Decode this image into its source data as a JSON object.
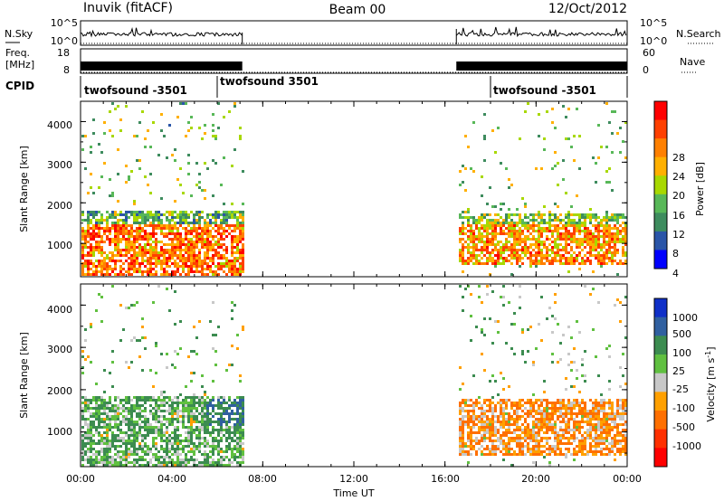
{
  "header": {
    "station": "Inuvik (fitACF)",
    "beam": "Beam 00",
    "date": "12/Oct/2012"
  },
  "panels": {
    "nsky": {
      "left_label": "N.Sky",
      "right_label": "N.Search",
      "left_ticks": [
        "10^5",
        "10^0"
      ],
      "right_ticks": [
        "10^5",
        "10^0"
      ]
    },
    "freq": {
      "left_label_1": "Freq.",
      "left_label_2": "[MHz]",
      "left_ticks": [
        "18",
        "8"
      ],
      "right_label": "Nave",
      "right_ticks": [
        "60",
        "0"
      ]
    },
    "cpid": {
      "label": "CPID",
      "segments": [
        "twofsound -3501",
        "twofsound 3501",
        "twofsound -3501"
      ]
    }
  },
  "power": {
    "ylabel": "Slant Range [km]",
    "yticks": [
      "4000",
      "3000",
      "2000",
      "1000"
    ],
    "cbar_label": "Power [dB]",
    "cbar_ticks": [
      "28",
      "24",
      "20",
      "16",
      "12",
      "8",
      "4"
    ],
    "cbar_colors": [
      "#ff0000",
      "#ff4000",
      "#ff8000",
      "#ffb000",
      "#a8d800",
      "#58b858",
      "#3e8c5e",
      "#2a55a8",
      "#0000ff"
    ]
  },
  "velocity": {
    "ylabel": "Slant Range [km]",
    "yticks": [
      "4000",
      "3000",
      "2000",
      "1000"
    ],
    "cbar_label": "Velocity [m s",
    "cbar_label_sup": "-1",
    "cbar_label_close": "]",
    "cbar_ticks": [
      "1000",
      "500",
      "100",
      "25",
      "-25",
      "-100",
      "-500",
      "-1000"
    ],
    "cbar_colors": [
      "#1030c8",
      "#3060a0",
      "#3c8c50",
      "#60c040",
      "#c8c8c8",
      "#ffa000",
      "#ff7000",
      "#ff3000",
      "#ff0000"
    ]
  },
  "xaxis": {
    "label": "Time UT",
    "ticks": [
      "00:00",
      "04:00",
      "08:00",
      "12:00",
      "16:00",
      "20:00",
      "00:00"
    ]
  },
  "chart_data": {
    "type": "heatmap",
    "title": "Inuvik (fitACF) Beam 00 12/Oct/2012",
    "xlabel": "Time UT",
    "ylabel": "Slant Range [km]",
    "xlim": [
      "00:00",
      "24:00"
    ],
    "ylim": [
      180,
      4500
    ],
    "x_ticks": [
      "00:00",
      "04:00",
      "08:00",
      "12:00",
      "16:00",
      "20:00",
      "00:00"
    ],
    "y_ticks": [
      1000,
      2000,
      3000,
      4000
    ],
    "data_intervals_ut": [
      [
        0.0,
        7.1
      ],
      [
        16.5,
        24.0
      ]
    ],
    "cpid_segments": [
      {
        "label": "twofsound -3501",
        "start_hour": 0.0,
        "end_hour": 6.0
      },
      {
        "label": "twofsound 3501",
        "start_hour": 6.0,
        "end_hour": 18.0
      },
      {
        "label": "twofsound -3501",
        "start_hour": 18.0,
        "end_hour": 24.0
      }
    ],
    "power_colorbar": {
      "label": "Power [dB]",
      "ticks": [
        4,
        8,
        12,
        16,
        20,
        24,
        28
      ],
      "range": [
        0,
        32
      ]
    },
    "velocity_colorbar": {
      "label": "Velocity [m s-1]",
      "ticks": [
        -1000,
        -500,
        -100,
        -25,
        25,
        100,
        500,
        1000
      ],
      "range": [
        -1500,
        1500
      ]
    },
    "power_regions": [
      {
        "start_hour": 0.0,
        "end_hour": 7.1,
        "range_min_km": 200,
        "range_max_km": 1500,
        "typical_db": 24
      },
      {
        "start_hour": 0.0,
        "end_hour": 7.1,
        "range_min_km": 1500,
        "range_max_km": 1850,
        "typical_db": 12
      },
      {
        "start_hour": 16.5,
        "end_hour": 24.0,
        "range_min_km": 500,
        "range_max_km": 1500,
        "typical_db": 22
      },
      {
        "start_hour": 16.5,
        "end_hour": 24.0,
        "range_min_km": 1500,
        "range_max_km": 1800,
        "typical_db": 14
      }
    ],
    "velocity_regions": [
      {
        "start_hour": 0.0,
        "end_hour": 7.1,
        "range_min_km": 200,
        "range_max_km": 1850,
        "typical_ms": 100
      },
      {
        "start_hour": 5.5,
        "end_hour": 7.1,
        "range_min_km": 1200,
        "range_max_km": 1800,
        "typical_ms": 500
      },
      {
        "start_hour": 16.5,
        "end_hour": 24.0,
        "range_min_km": 500,
        "range_max_km": 1800,
        "typical_ms": -100
      }
    ]
  }
}
